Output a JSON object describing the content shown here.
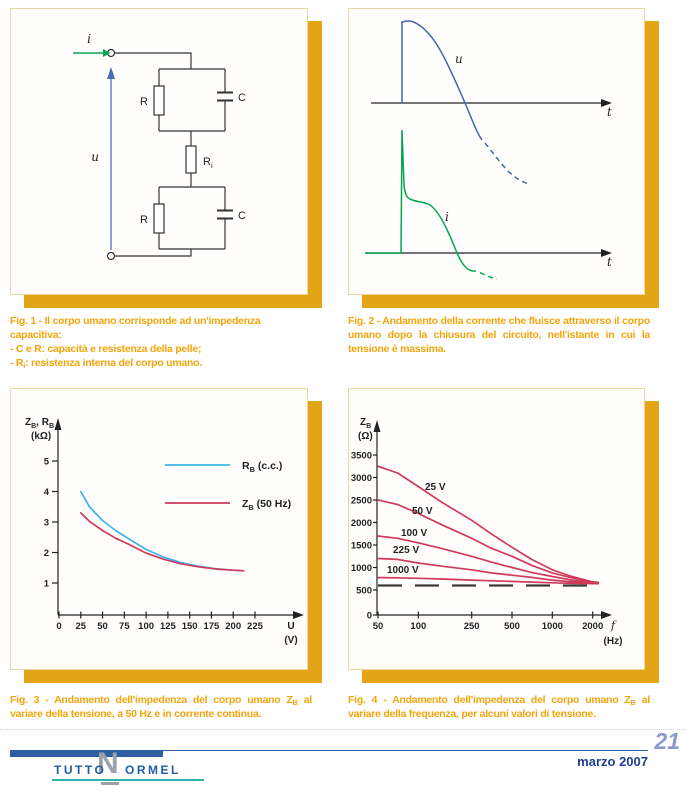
{
  "colors": {
    "accent_orange": "#e3a416",
    "caption_orange": "#f2a50c",
    "panel_border": "#ecd79e",
    "circuit_blue": "#4a6cb3",
    "circuit_green": "#00a651",
    "curve_blue": "#4165ae",
    "curve_green": "#00a651",
    "curve_cyan": "#3ab4e8",
    "curve_crimson": "#cf3a5a",
    "footer_blue": "#2e5fa3",
    "footer_dark_blue": "#1d3f94",
    "page_number_blue": "#8a99cc",
    "logo_blue": "#1e5ca6",
    "logo_gray": "#9aa3ad",
    "logo_teal": "#2db3ae"
  },
  "fig1": {
    "labels": {
      "current": "i",
      "voltage": "u",
      "r1": "R",
      "c1": "C",
      "ri": [
        {
          "t": "R"
        },
        {
          "t": "i",
          "sub": true
        }
      ],
      "r2": "R",
      "c2": "C"
    }
  },
  "fig2": {
    "labels": {
      "voltage_curve": "u",
      "current_curve": "i",
      "time1": "t",
      "time2": "t"
    }
  },
  "fig3_ui": {
    "y_label": [
      {
        "t": "Z"
      },
      {
        "t": "B",
        "sub": true
      },
      {
        "t": ", R"
      },
      {
        "t": "B",
        "sub": true
      }
    ],
    "y_unit": "(kΩ)",
    "x_sym": "U",
    "x_unit": "(V)",
    "legend": [
      {
        "segments": [
          {
            "t": "R"
          },
          {
            "t": "B",
            "sub": true
          },
          {
            "t": " (c.c.)"
          }
        ]
      },
      {
        "segments": [
          {
            "t": "Z"
          },
          {
            "t": "B",
            "sub": true
          },
          {
            "t": " (50 Hz)"
          }
        ]
      }
    ]
  },
  "fig4_ui": {
    "y_label": [
      {
        "t": "Z"
      },
      {
        "t": "B",
        "sub": true
      }
    ],
    "y_unit": "(Ω)",
    "x_sym": "f",
    "x_unit": "(Hz)"
  },
  "captions": {
    "fig1": [
      [
        {
          "t": "Fig. 1 - Il corpo umano corrisponde ad un'impedenza capacitiva:"
        }
      ],
      [
        {
          "t": "- C e R: capacità e resistenza della pelle;"
        }
      ],
      [
        {
          "t": "- R"
        },
        {
          "t": "i",
          "sub": true
        },
        {
          "t": ": resistenza interna del corpo umano."
        }
      ]
    ],
    "fig2": [
      {
        "t": "Fig. 2 - Andamento della corrente che fluisce attraverso il corpo umano dopo la chiusura del circuito, nell'istante in cui la tensione è massima."
      }
    ],
    "fig3": [
      {
        "t": "Fig. 3 - Andamento dell'impedenza del corpo umano Z"
      },
      {
        "t": "B",
        "sub": true
      },
      {
        "t": " al variare della tensione, a 50 Hz e in corrente continua."
      }
    ],
    "fig4": [
      {
        "t": "Fig. 4 - Andamento dell'impedenza del corpo umano Z"
      },
      {
        "t": "B",
        "sub": true
      },
      {
        "t": " al variare della frequenza, per alcuni valori di tensione."
      }
    ]
  },
  "chart_data": [
    {
      "type": "line",
      "figure": "Fig. 3",
      "title": "",
      "xlabel": "U (V)",
      "ylabel": "ZB, RB (kΩ)",
      "xlim": [
        0,
        240
      ],
      "ylim": [
        0,
        5.9
      ],
      "grid": false,
      "legend_position": "upper right",
      "x_ticks": [
        0,
        25,
        50,
        75,
        100,
        125,
        150,
        175,
        200,
        225
      ],
      "y_ticks": [
        1,
        2,
        3,
        4,
        5
      ],
      "series": [
        {
          "name": "RB (c.c.)",
          "color": "#3ab4e8",
          "x": [
            25,
            35,
            50,
            65,
            80,
            100,
            120,
            140,
            160,
            180,
            200,
            212
          ],
          "y": [
            4.0,
            3.5,
            3.05,
            2.72,
            2.45,
            2.1,
            1.85,
            1.67,
            1.55,
            1.47,
            1.42,
            1.4
          ]
        },
        {
          "name": "ZB (50 Hz)",
          "color": "#cf3a5a",
          "x": [
            25,
            35,
            50,
            65,
            80,
            100,
            120,
            140,
            160,
            180,
            200,
            212
          ],
          "y": [
            3.3,
            3.02,
            2.72,
            2.47,
            2.27,
            1.98,
            1.78,
            1.63,
            1.53,
            1.46,
            1.42,
            1.4
          ]
        }
      ]
    },
    {
      "type": "line",
      "figure": "Fig. 4",
      "title": "",
      "xscale": "log",
      "xlabel": "f (Hz)",
      "ylabel": "ZB (Ω)",
      "grid": false,
      "x_ticks": [
        50,
        100,
        250,
        500,
        1000,
        2000
      ],
      "y_ticks": [
        0,
        500,
        1000,
        1500,
        2000,
        2500,
        3000,
        3500
      ],
      "series_color": "#cf3a5a",
      "series": [
        {
          "name": "25 V",
          "x": [
            50,
            70,
            100,
            150,
            250,
            350,
            500,
            700,
            1000,
            1400,
            2000,
            2200
          ],
          "y": [
            3250,
            3100,
            2800,
            2450,
            2050,
            1750,
            1450,
            1180,
            950,
            800,
            680,
            670
          ]
        },
        {
          "name": "50 V",
          "x": [
            50,
            70,
            100,
            150,
            250,
            350,
            500,
            700,
            1000,
            1400,
            2000,
            2200
          ],
          "y": [
            2500,
            2400,
            2200,
            1950,
            1650,
            1430,
            1250,
            1050,
            880,
            770,
            670,
            665
          ]
        },
        {
          "name": "100 V",
          "x": [
            50,
            70,
            100,
            150,
            250,
            350,
            500,
            700,
            1000,
            1400,
            2000,
            2200
          ],
          "y": [
            1700,
            1650,
            1550,
            1420,
            1250,
            1120,
            1000,
            890,
            800,
            720,
            660,
            655
          ]
        },
        {
          "name": "225 V",
          "x": [
            50,
            70,
            100,
            150,
            250,
            350,
            500,
            700,
            1000,
            1400,
            2000,
            2200
          ],
          "y": [
            1200,
            1180,
            1100,
            1030,
            950,
            880,
            830,
            780,
            720,
            680,
            650,
            648
          ]
        },
        {
          "name": "1000 V",
          "x": [
            50,
            70,
            100,
            150,
            250,
            350,
            500,
            700,
            1000,
            1400,
            2000,
            2200
          ],
          "y": [
            775,
            770,
            760,
            745,
            720,
            705,
            690,
            675,
            660,
            650,
            640,
            640
          ]
        }
      ],
      "asymptote": {
        "value": 600,
        "style": "dashed",
        "color": "#3a3a3a"
      }
    }
  ],
  "footer": {
    "page_number": "21",
    "date": "marzo 2007",
    "logo": {
      "part1": "TUTTO",
      "n": "N",
      "part2": "ORMEL"
    }
  }
}
